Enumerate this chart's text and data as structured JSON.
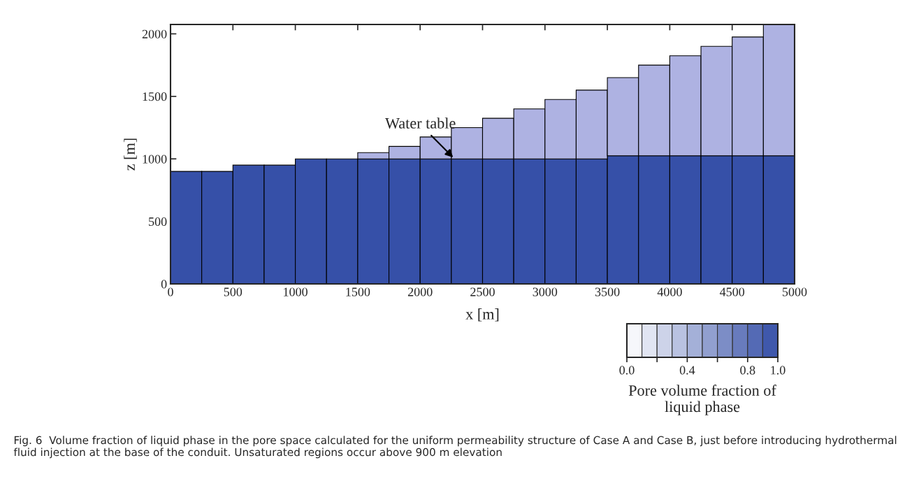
{
  "chart_data": {
    "type": "bar",
    "stacked": true,
    "x": [
      125,
      375,
      625,
      875,
      1125,
      1375,
      1625,
      1875,
      2125,
      2375,
      2625,
      2875,
      3125,
      3375,
      3625,
      3875,
      4125,
      4375,
      4625,
      4875
    ],
    "series": [
      {
        "color": "#3650a8",
        "values": [
          900,
          900,
          950,
          950,
          1000,
          1000,
          1000,
          1000,
          1000,
          1000,
          1000,
          1000,
          1000,
          1000,
          1025,
          1025,
          1025,
          1025,
          1025,
          1025
        ]
      },
      {
        "color": "#aeb2e2",
        "values": [
          null,
          null,
          null,
          null,
          null,
          null,
          50,
          100,
          175,
          250,
          325,
          400,
          475,
          550,
          625,
          725,
          800,
          875,
          950,
          1050
        ]
      }
    ],
    "xlabel": "x [m]",
    "ylabel": "z [m]",
    "xlim": [
      0,
      5000
    ],
    "xticks": [
      0,
      500,
      1000,
      1500,
      2000,
      2500,
      3000,
      3500,
      4000,
      4500,
      5000
    ],
    "ylim": [
      0,
      2075
    ],
    "yticks": [
      0,
      500,
      1000,
      1500,
      2000
    ],
    "grid": false,
    "legend": false,
    "clabel": "Pore volume fraction of\nliquid phase",
    "clim": [
      0,
      1
    ],
    "cticks": [
      {
        "value": 0,
        "label": "0.0"
      },
      {
        "value": 0.2,
        "label": null
      },
      {
        "value": 0.4,
        "label": "0.4"
      },
      {
        "value": 0.6,
        "label": null
      },
      {
        "value": 0.8,
        "label": "0.8"
      },
      {
        "value": 1,
        "label": "1.0"
      }
    ],
    "annotations": [
      {
        "text": "Water table",
        "x": 2275,
        "y": 1000
      },
      "Fig. 6  Volume fraction of liquid phase in the pore space calculated for the uniform permeability structure of Case A and Case B, just before introducing hydrothermal fluid injection at the base of the conduit. Unsaturated regions occur above 900 m elevation"
    ]
  }
}
